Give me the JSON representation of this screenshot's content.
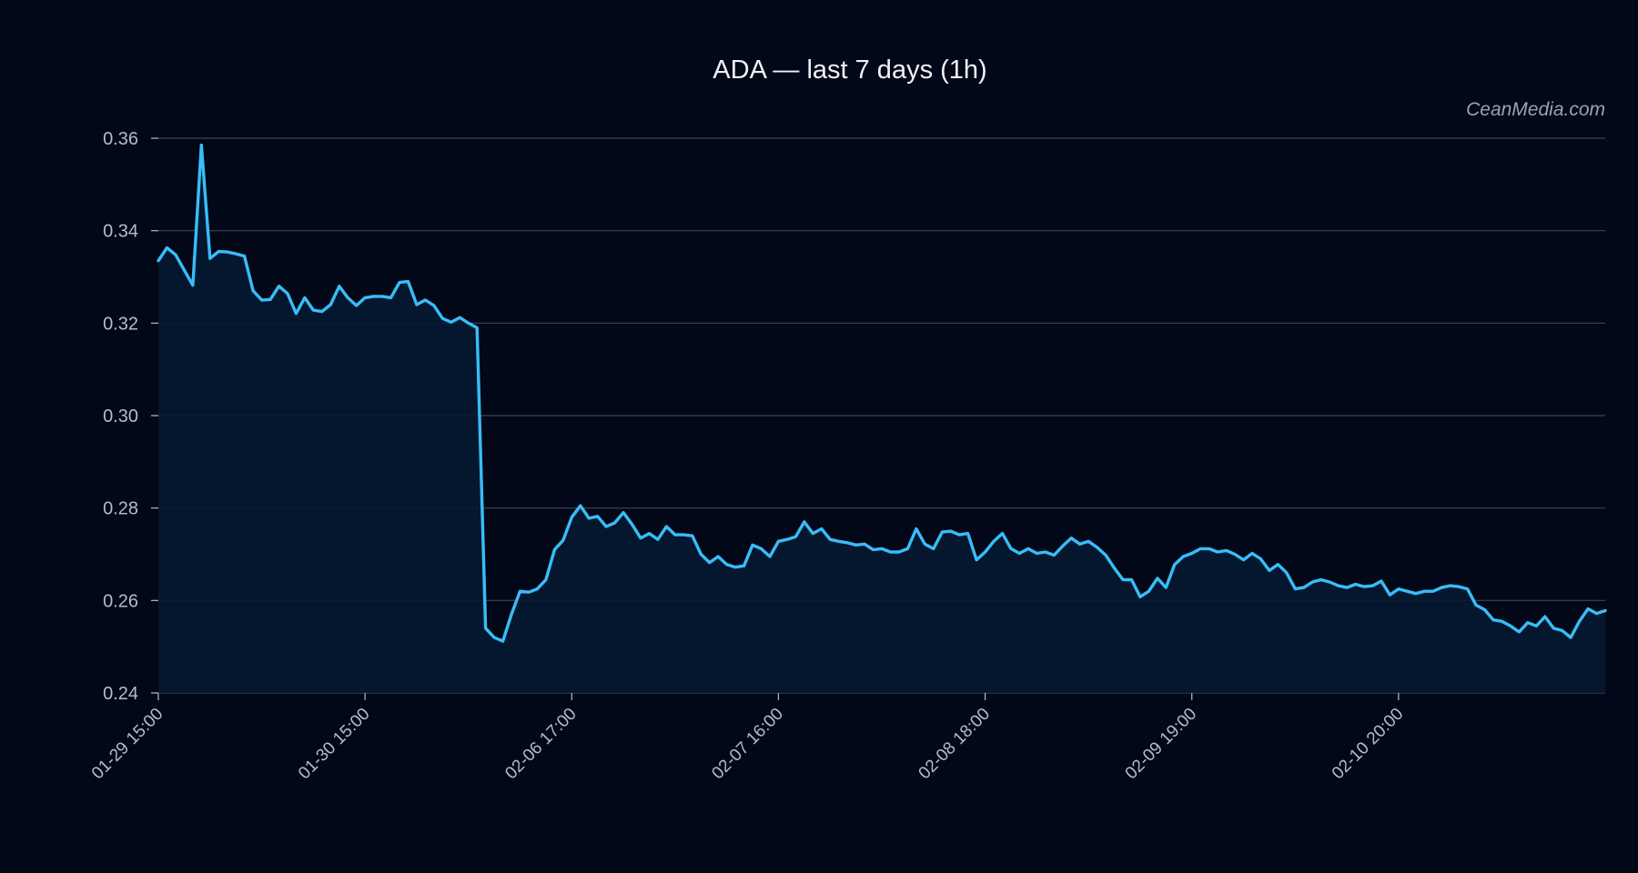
{
  "chart_data": {
    "type": "area",
    "title": "ADA — last 7 days (1h)",
    "watermark": "CeanMedia.com",
    "xlabel": "",
    "ylabel": "",
    "ylim": [
      0.24,
      0.36
    ],
    "yticks": [
      0.24,
      0.26,
      0.28,
      0.3,
      0.32,
      0.34,
      0.36
    ],
    "ytick_labels": [
      "0.24",
      "0.26",
      "0.28",
      "0.30",
      "0.32",
      "0.34",
      "0.36"
    ],
    "grid": true,
    "colors": {
      "background": "#020817",
      "line": "#38bdf8",
      "fill": "#061a32",
      "grid": "#3a4556",
      "text": "#b4bcc8",
      "title": "#eef2f7"
    },
    "xtick_labels": [
      "01-29 15:00",
      "01-30 15:00",
      "02-06 17:00",
      "02-07 16:00",
      "02-08 18:00",
      "02-09 19:00",
      "02-10 20:00"
    ],
    "xtick_index": [
      0,
      24,
      48,
      72,
      96,
      120,
      144
    ],
    "series": [
      {
        "values": [
          0.3335,
          0.3363,
          0.3348,
          0.3315,
          0.3282,
          0.3585,
          0.334,
          0.3355,
          0.3354,
          0.335,
          0.3345,
          0.327,
          0.325,
          0.3251,
          0.328,
          0.3264,
          0.3221,
          0.3255,
          0.3228,
          0.3225,
          0.324,
          0.328,
          0.3255,
          0.3238,
          0.3255,
          0.3258,
          0.3258,
          0.3255,
          0.3288,
          0.329,
          0.324,
          0.325,
          0.3238,
          0.321,
          0.3202,
          0.3212,
          0.32,
          0.319,
          0.254,
          0.252,
          0.2512,
          0.257,
          0.262,
          0.2618,
          0.2625,
          0.2645,
          0.271,
          0.273,
          0.278,
          0.2805,
          0.2778,
          0.2782,
          0.276,
          0.2768,
          0.279,
          0.2765,
          0.2735,
          0.2745,
          0.2732,
          0.276,
          0.2742,
          0.2742,
          0.274,
          0.27,
          0.2682,
          0.2695,
          0.2678,
          0.2672,
          0.2675,
          0.272,
          0.2712,
          0.2695,
          0.2728,
          0.2732,
          0.2738,
          0.277,
          0.2745,
          0.2755,
          0.2732,
          0.2728,
          0.2725,
          0.272,
          0.2722,
          0.271,
          0.2712,
          0.2705,
          0.2705,
          0.2712,
          0.2755,
          0.2722,
          0.2712,
          0.2748,
          0.275,
          0.2742,
          0.2745,
          0.2688,
          0.2705,
          0.2728,
          0.2745,
          0.2712,
          0.2702,
          0.2712,
          0.2702,
          0.2705,
          0.2698,
          0.2718,
          0.2735,
          0.2722,
          0.2728,
          0.2715,
          0.2698,
          0.267,
          0.2645,
          0.2645,
          0.2608,
          0.262,
          0.2648,
          0.2628,
          0.2678,
          0.2695,
          0.2702,
          0.2712,
          0.2712,
          0.2705,
          0.2708,
          0.27,
          0.2688,
          0.2702,
          0.269,
          0.2665,
          0.2678,
          0.266,
          0.2625,
          0.2628,
          0.264,
          0.2645,
          0.264,
          0.2632,
          0.2628,
          0.2635,
          0.263,
          0.2632,
          0.2642,
          0.2612,
          0.2625,
          0.262,
          0.2615,
          0.262,
          0.262,
          0.2628,
          0.2632,
          0.263,
          0.2625,
          0.259,
          0.258,
          0.2558,
          0.2555,
          0.2545,
          0.2532,
          0.2552,
          0.2545,
          0.2565,
          0.254,
          0.2535,
          0.252,
          0.2555,
          0.2582,
          0.2572,
          0.2578
        ]
      }
    ]
  }
}
